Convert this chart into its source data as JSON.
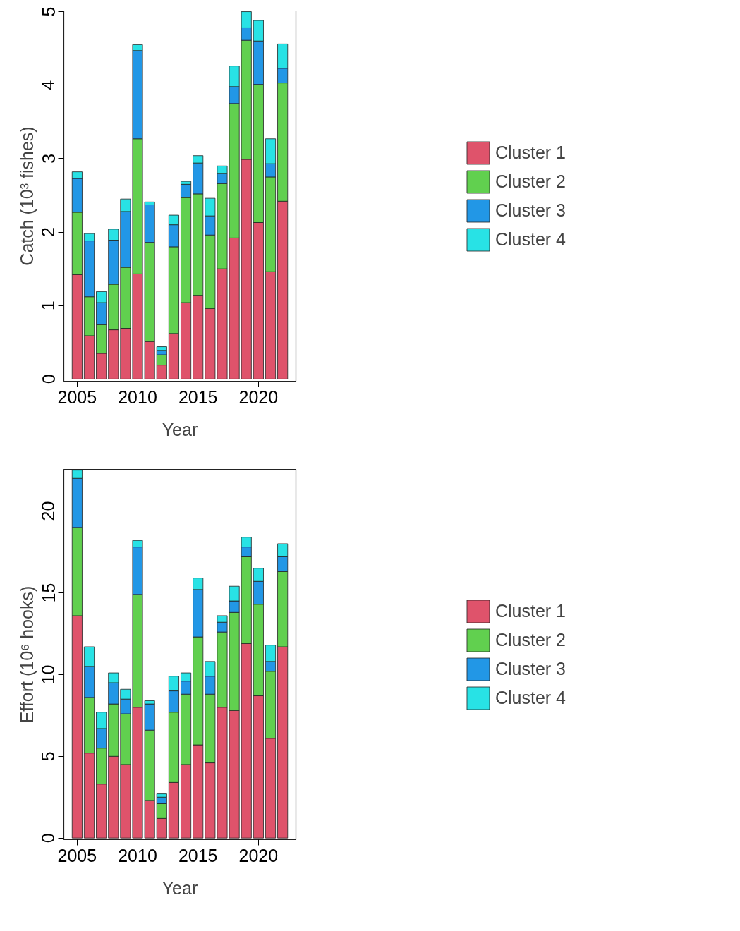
{
  "chart_data": [
    {
      "type": "bar",
      "stacked": true,
      "xlabel": "Year",
      "ylabel": "Catch (10³ fishes)",
      "x": [
        2005,
        2006,
        2007,
        2008,
        2009,
        2010,
        2011,
        2012,
        2013,
        2014,
        2015,
        2016,
        2017,
        2018,
        2019,
        2020,
        2021,
        2022
      ],
      "xlim": [
        2003.9,
        2023.1
      ],
      "xticks": [
        2005,
        2010,
        2015,
        2020
      ],
      "ylim": [
        -0.03,
        5.01
      ],
      "yticks": [
        0,
        1,
        2,
        3,
        4,
        5
      ],
      "legend": "right",
      "grid": false,
      "series": [
        {
          "name": "Cluster 1",
          "color": "#df536b",
          "values": [
            1.42,
            0.59,
            0.35,
            0.67,
            0.69,
            1.43,
            0.51,
            0.19,
            0.62,
            1.04,
            1.14,
            0.96,
            1.5,
            1.92,
            2.99,
            2.13,
            1.46,
            2.42
          ]
        },
        {
          "name": "Cluster 2",
          "color": "#61d04f",
          "values": [
            0.85,
            0.53,
            0.39,
            0.62,
            0.83,
            1.84,
            1.35,
            0.14,
            1.18,
            1.43,
            1.38,
            1.0,
            1.16,
            1.83,
            1.62,
            1.88,
            1.29,
            1.61
          ]
        },
        {
          "name": "Cluster 3",
          "color": "#2297e6",
          "values": [
            0.46,
            0.76,
            0.3,
            0.6,
            0.76,
            1.2,
            0.51,
            0.06,
            0.3,
            0.18,
            0.42,
            0.26,
            0.14,
            0.23,
            0.17,
            0.59,
            0.18,
            0.2
          ]
        },
        {
          "name": "Cluster 4",
          "color": "#28e2e5",
          "values": [
            0.09,
            0.1,
            0.15,
            0.15,
            0.17,
            0.08,
            0.04,
            0.05,
            0.13,
            0.04,
            0.1,
            0.24,
            0.1,
            0.28,
            0.22,
            0.28,
            0.34,
            0.33
          ]
        }
      ]
    },
    {
      "type": "bar",
      "stacked": true,
      "xlabel": "Year",
      "ylabel": "Effort (10⁶ hooks)",
      "x": [
        2005,
        2006,
        2007,
        2008,
        2009,
        2010,
        2011,
        2012,
        2013,
        2014,
        2015,
        2016,
        2017,
        2018,
        2019,
        2020,
        2021,
        2022
      ],
      "xlim": [
        2003.9,
        2023.1
      ],
      "xticks": [
        2005,
        2010,
        2015,
        2020
      ],
      "ylim": [
        -0.1,
        22.55
      ],
      "yticks": [
        0,
        5,
        10,
        15,
        20
      ],
      "legend": "right",
      "grid": false,
      "series": [
        {
          "name": "Cluster 1",
          "color": "#df536b",
          "values": [
            13.6,
            5.2,
            3.3,
            5.0,
            4.5,
            8.0,
            2.3,
            1.2,
            3.4,
            4.5,
            5.7,
            4.6,
            8.0,
            7.8,
            11.9,
            8.7,
            6.1,
            11.7
          ]
        },
        {
          "name": "Cluster 2",
          "color": "#61d04f",
          "values": [
            5.4,
            3.4,
            2.2,
            3.2,
            3.1,
            6.9,
            4.3,
            0.9,
            4.3,
            4.3,
            6.6,
            4.2,
            4.6,
            6.0,
            5.3,
            5.6,
            4.1,
            4.6
          ]
        },
        {
          "name": "Cluster 3",
          "color": "#2297e6",
          "values": [
            3.0,
            1.9,
            1.2,
            1.3,
            0.9,
            2.9,
            1.6,
            0.4,
            1.3,
            0.8,
            2.9,
            1.1,
            0.6,
            0.7,
            0.6,
            1.4,
            0.6,
            0.9
          ]
        },
        {
          "name": "Cluster 4",
          "color": "#28e2e5",
          "values": [
            0.5,
            1.2,
            1.0,
            0.6,
            0.6,
            0.4,
            0.2,
            0.2,
            0.9,
            0.5,
            0.7,
            0.9,
            0.4,
            0.9,
            0.6,
            0.8,
            1.0,
            0.8
          ]
        }
      ]
    }
  ]
}
